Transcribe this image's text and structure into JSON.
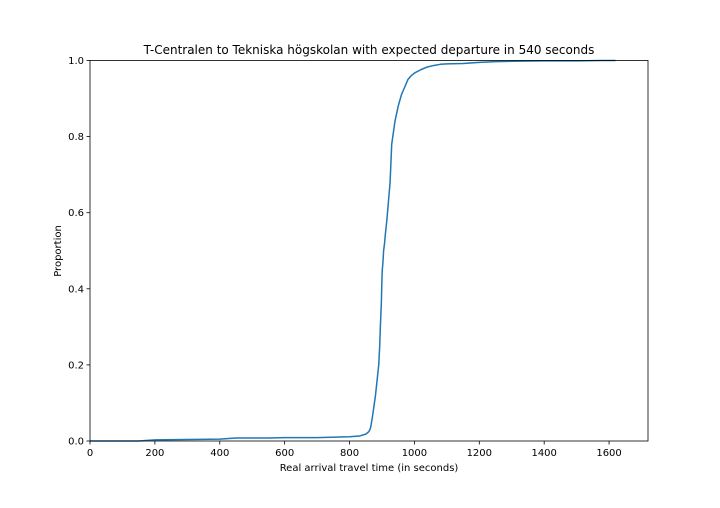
{
  "chart_data": {
    "type": "line",
    "title": "T-Centralen to Tekniska högskolan with expected departure in 540 seconds",
    "xlabel": "Real arrival travel time (in seconds)",
    "ylabel": "Proportion",
    "xlim": [
      0,
      1720
    ],
    "ylim": [
      0,
      1.0
    ],
    "x_ticks": [
      0,
      200,
      400,
      600,
      800,
      1000,
      1200,
      1400,
      1600
    ],
    "y_ticks": [
      0.0,
      0.2,
      0.4,
      0.6,
      0.8,
      1.0
    ],
    "x_tick_labels": [
      "0",
      "200",
      "400",
      "600",
      "800",
      "1000",
      "1200",
      "1400",
      "1600"
    ],
    "y_tick_labels": [
      "0.0",
      "0.2",
      "0.4",
      "0.6",
      "0.8",
      "1.0"
    ],
    "grid": false,
    "legend": "none",
    "series": [
      {
        "color": "#1f77b4",
        "x": [
          0,
          150,
          200,
          300,
          400,
          450,
          550,
          600,
          700,
          800,
          830,
          850,
          860,
          865,
          870,
          875,
          880,
          885,
          890,
          893,
          895,
          898,
          900,
          901,
          902,
          903,
          905,
          908,
          910,
          915,
          920,
          925,
          930,
          940,
          950,
          960,
          970,
          980,
          990,
          1000,
          1020,
          1040,
          1060,
          1080,
          1100,
          1150,
          1200,
          1250,
          1300,
          1400,
          1500,
          1580,
          1620
        ],
        "y": [
          0.0,
          0.0,
          0.003,
          0.004,
          0.005,
          0.008,
          0.008,
          0.009,
          0.009,
          0.011,
          0.013,
          0.018,
          0.025,
          0.035,
          0.06,
          0.09,
          0.12,
          0.16,
          0.2,
          0.25,
          0.3,
          0.36,
          0.43,
          0.45,
          0.46,
          0.47,
          0.5,
          0.52,
          0.54,
          0.58,
          0.63,
          0.68,
          0.78,
          0.84,
          0.88,
          0.91,
          0.93,
          0.95,
          0.96,
          0.967,
          0.976,
          0.983,
          0.987,
          0.99,
          0.991,
          0.992,
          0.995,
          0.997,
          0.998,
          0.999,
          0.999,
          1.0,
          1.0
        ]
      }
    ]
  }
}
